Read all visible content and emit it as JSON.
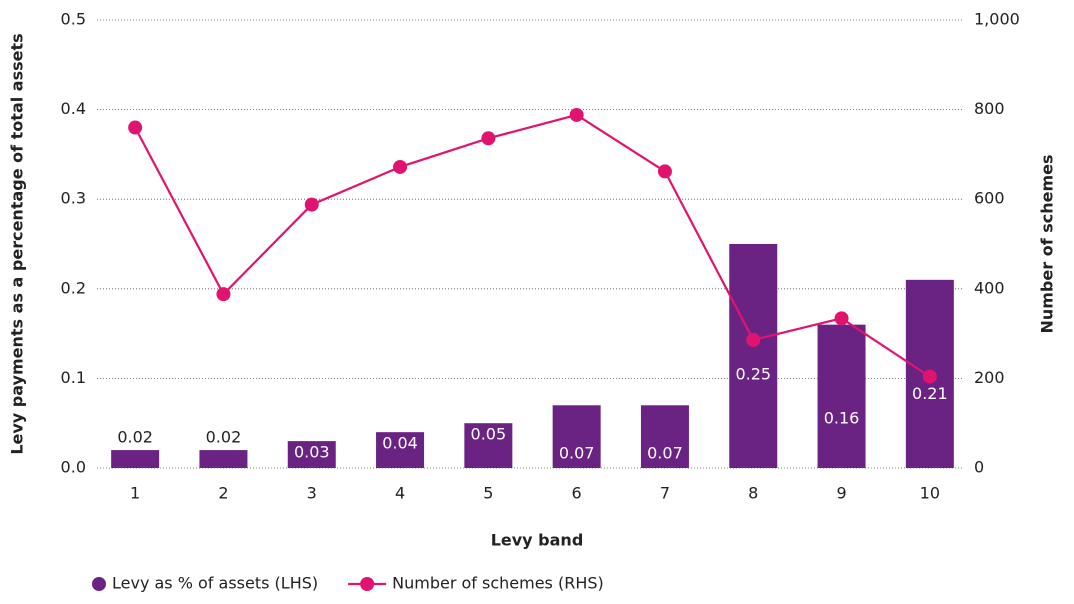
{
  "chart_data": {
    "type": "bar_line",
    "xlabel": "Levy band",
    "ylabel": "Levy payments as a percentage of total assets",
    "y2label": "Number of schemes",
    "categories": [
      "1",
      "2",
      "3",
      "4",
      "5",
      "6",
      "7",
      "8",
      "9",
      "10"
    ],
    "series": [
      {
        "name": "Levy as % of assets (LHS)",
        "type": "bar",
        "color": "#6a2383",
        "values": [
          0.02,
          0.02,
          0.03,
          0.04,
          0.05,
          0.07,
          0.07,
          0.25,
          0.16,
          0.21
        ]
      },
      {
        "name": "Number of schemes (RHS)",
        "type": "line",
        "axis": "y2",
        "color": "#e0146f",
        "values": [
          760,
          388,
          588,
          672,
          736,
          788,
          662,
          286,
          334,
          204
        ]
      }
    ],
    "ylim": [
      0,
      0.5
    ],
    "yticks": [
      {
        "value": 0,
        "label": "0.0"
      },
      0.1,
      0.2,
      0.3,
      0.4,
      0.5
    ],
    "y2lim": [
      0,
      1000
    ],
    "y2ticks": [
      0,
      200,
      400,
      600,
      800,
      {
        "value": 1000,
        "label": "1,000"
      }
    ],
    "grid": true,
    "legend": "bottom"
  }
}
